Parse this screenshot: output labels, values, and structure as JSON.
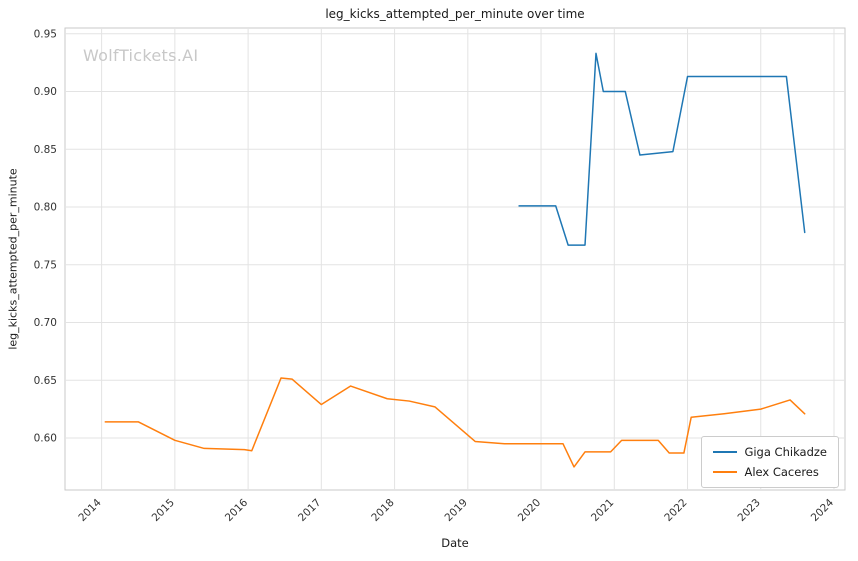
{
  "watermark": "WolfTickets.AI",
  "chart_data": {
    "type": "line",
    "title": "leg_kicks_attempted_per_minute over time",
    "xlabel": "Date",
    "ylabel": "leg_kicks_attempted_per_minute",
    "xlim": [
      2013.5,
      2024.15
    ],
    "ylim": [
      0.555,
      0.955
    ],
    "x_ticks": [
      2014,
      2015,
      2016,
      2017,
      2018,
      2019,
      2020,
      2021,
      2022,
      2023,
      2024
    ],
    "y_ticks": [
      0.6,
      0.65,
      0.7,
      0.75,
      0.8,
      0.85,
      0.9,
      0.95
    ],
    "grid": true,
    "legend_position": "lower right",
    "colors": {
      "grid": "#e3e3e3",
      "frame": "#c9c9c9",
      "tick_label": "#333333"
    },
    "series": [
      {
        "name": "Giga Chikadze",
        "color": "#1f77b4",
        "points": [
          [
            2019.7,
            0.801
          ],
          [
            2020.2,
            0.801
          ],
          [
            2020.37,
            0.767
          ],
          [
            2020.6,
            0.767
          ],
          [
            2020.75,
            0.933
          ],
          [
            2020.85,
            0.9
          ],
          [
            2021.15,
            0.9
          ],
          [
            2021.35,
            0.845
          ],
          [
            2021.8,
            0.848
          ],
          [
            2022.0,
            0.913
          ],
          [
            2023.35,
            0.913
          ],
          [
            2023.6,
            0.778
          ]
        ]
      },
      {
        "name": "Alex Caceres",
        "color": "#ff7f0e",
        "points": [
          [
            2014.05,
            0.614
          ],
          [
            2014.5,
            0.614
          ],
          [
            2015.0,
            0.598
          ],
          [
            2015.4,
            0.591
          ],
          [
            2015.95,
            0.59
          ],
          [
            2016.05,
            0.589
          ],
          [
            2016.45,
            0.652
          ],
          [
            2016.6,
            0.651
          ],
          [
            2017.0,
            0.629
          ],
          [
            2017.4,
            0.645
          ],
          [
            2017.9,
            0.634
          ],
          [
            2018.2,
            0.632
          ],
          [
            2018.55,
            0.627
          ],
          [
            2019.1,
            0.597
          ],
          [
            2019.5,
            0.595
          ],
          [
            2020.3,
            0.595
          ],
          [
            2020.45,
            0.575
          ],
          [
            2020.6,
            0.588
          ],
          [
            2020.95,
            0.588
          ],
          [
            2021.1,
            0.598
          ],
          [
            2021.6,
            0.598
          ],
          [
            2021.75,
            0.587
          ],
          [
            2021.95,
            0.587
          ],
          [
            2022.05,
            0.618
          ],
          [
            2022.5,
            0.621
          ],
          [
            2023.0,
            0.625
          ],
          [
            2023.4,
            0.633
          ],
          [
            2023.6,
            0.621
          ]
        ]
      }
    ]
  }
}
